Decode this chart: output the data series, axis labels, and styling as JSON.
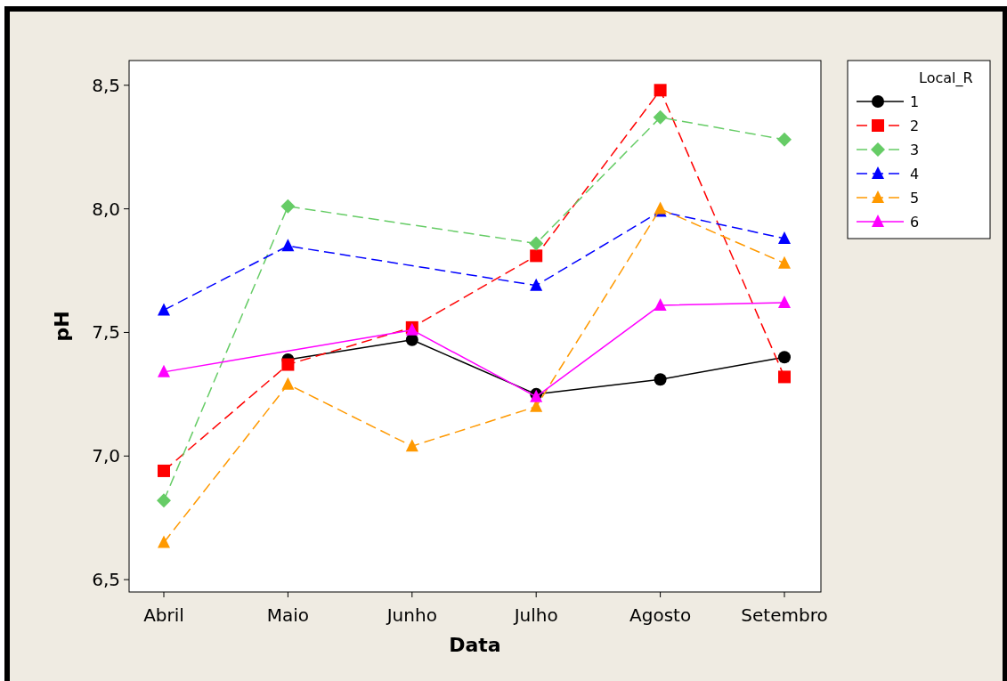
{
  "chart_data": {
    "type": "line",
    "xlabel": "Data",
    "ylabel": "pH",
    "legend_title": "Local_R",
    "legend": "right",
    "grid": false,
    "categories": [
      "Abril",
      "Maio",
      "Junho",
      "Julho",
      "Agosto",
      "Setembro"
    ],
    "ylim": [
      6.45,
      8.6
    ],
    "yticks": [
      {
        "value": 6.5,
        "label": "6,5"
      },
      {
        "value": 7,
        "label": "7,0"
      },
      {
        "value": 7.5,
        "label": "7,5"
      },
      {
        "value": 8,
        "label": "8,0"
      },
      {
        "value": 8.5,
        "label": "8,5"
      }
    ],
    "series": [
      {
        "name": "1",
        "color": "#000000",
        "marker": "circle",
        "line_style": "solid",
        "values": [
          null,
          7.39,
          7.47,
          7.25,
          7.31,
          7.4
        ]
      },
      {
        "name": "2",
        "color": "#ff0000",
        "marker": "square",
        "line_style": "dashed",
        "values": [
          6.94,
          7.37,
          7.52,
          7.81,
          8.48,
          7.32
        ]
      },
      {
        "name": "3",
        "color": "#66cc66",
        "marker": "diamond",
        "line_style": "dashed",
        "values": [
          6.82,
          8.01,
          null,
          7.86,
          8.37,
          8.28
        ]
      },
      {
        "name": "4",
        "color": "#0000ff",
        "marker": "triangle",
        "line_style": "dashed",
        "values": [
          7.59,
          7.85,
          null,
          7.69,
          7.99,
          7.88
        ]
      },
      {
        "name": "5",
        "color": "#ff9900",
        "marker": "triangle",
        "line_style": "dashed",
        "values": [
          6.65,
          7.29,
          7.04,
          7.2,
          8.0,
          7.78
        ]
      },
      {
        "name": "6",
        "color": "#ff00ff",
        "marker": "triangle",
        "line_style": "solid",
        "values": [
          7.34,
          null,
          7.51,
          7.24,
          7.61,
          7.62
        ]
      }
    ]
  }
}
